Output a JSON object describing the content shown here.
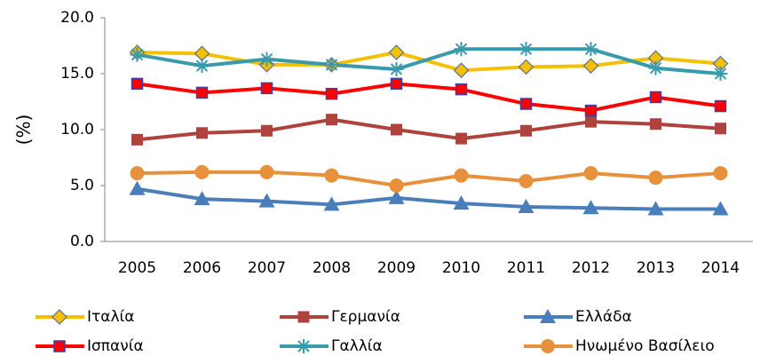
{
  "chart_data": {
    "type": "line",
    "y_label": "(%)",
    "categories": [
      "2005",
      "2006",
      "2007",
      "2008",
      "2009",
      "2010",
      "2011",
      "2012",
      "2013",
      "2014"
    ],
    "ylim": [
      0,
      20
    ],
    "yticks": [
      {
        "value": 0,
        "label": "0.0"
      },
      {
        "value": 5,
        "label": "5.0"
      },
      {
        "value": 10,
        "label": "10.0"
      },
      {
        "value": 15,
        "label": "15.0"
      },
      {
        "value": 20,
        "label": "20.0"
      }
    ],
    "legend": "bottom",
    "series": [
      {
        "name": "Ιταλία",
        "color": "#f5c000",
        "marker": "diamond",
        "values": [
          16.9,
          16.8,
          15.8,
          15.8,
          16.9,
          15.3,
          15.6,
          15.7,
          16.4,
          15.9
        ]
      },
      {
        "name": "Γερμανία",
        "color": "#b0423e",
        "marker": "square",
        "values": [
          9.1,
          9.7,
          9.9,
          10.9,
          10.0,
          9.2,
          9.9,
          10.7,
          10.5,
          10.1
        ]
      },
      {
        "name": "Ελλάδα",
        "color": "#4a7ebb",
        "marker": "triangle",
        "values": [
          4.7,
          3.8,
          3.6,
          3.3,
          3.9,
          3.4,
          3.1,
          3.0,
          2.9,
          2.9
        ]
      },
      {
        "name": "Ισπανία",
        "color": "#ff0000",
        "marker": "square-outlined",
        "values": [
          14.1,
          13.3,
          13.7,
          13.2,
          14.1,
          13.6,
          12.3,
          11.7,
          12.9,
          12.1
        ]
      },
      {
        "name": "Γαλλία",
        "color": "#3a9aab",
        "marker": "star",
        "values": [
          16.7,
          15.7,
          16.3,
          15.8,
          15.4,
          17.2,
          17.2,
          17.2,
          15.5,
          15.0
        ]
      },
      {
        "name": "Ηνωμένο Βασίλειο",
        "color": "#e8913d",
        "marker": "circle",
        "values": [
          6.1,
          6.2,
          6.2,
          5.9,
          5.0,
          5.9,
          5.4,
          6.1,
          5.7,
          6.1
        ]
      }
    ]
  }
}
